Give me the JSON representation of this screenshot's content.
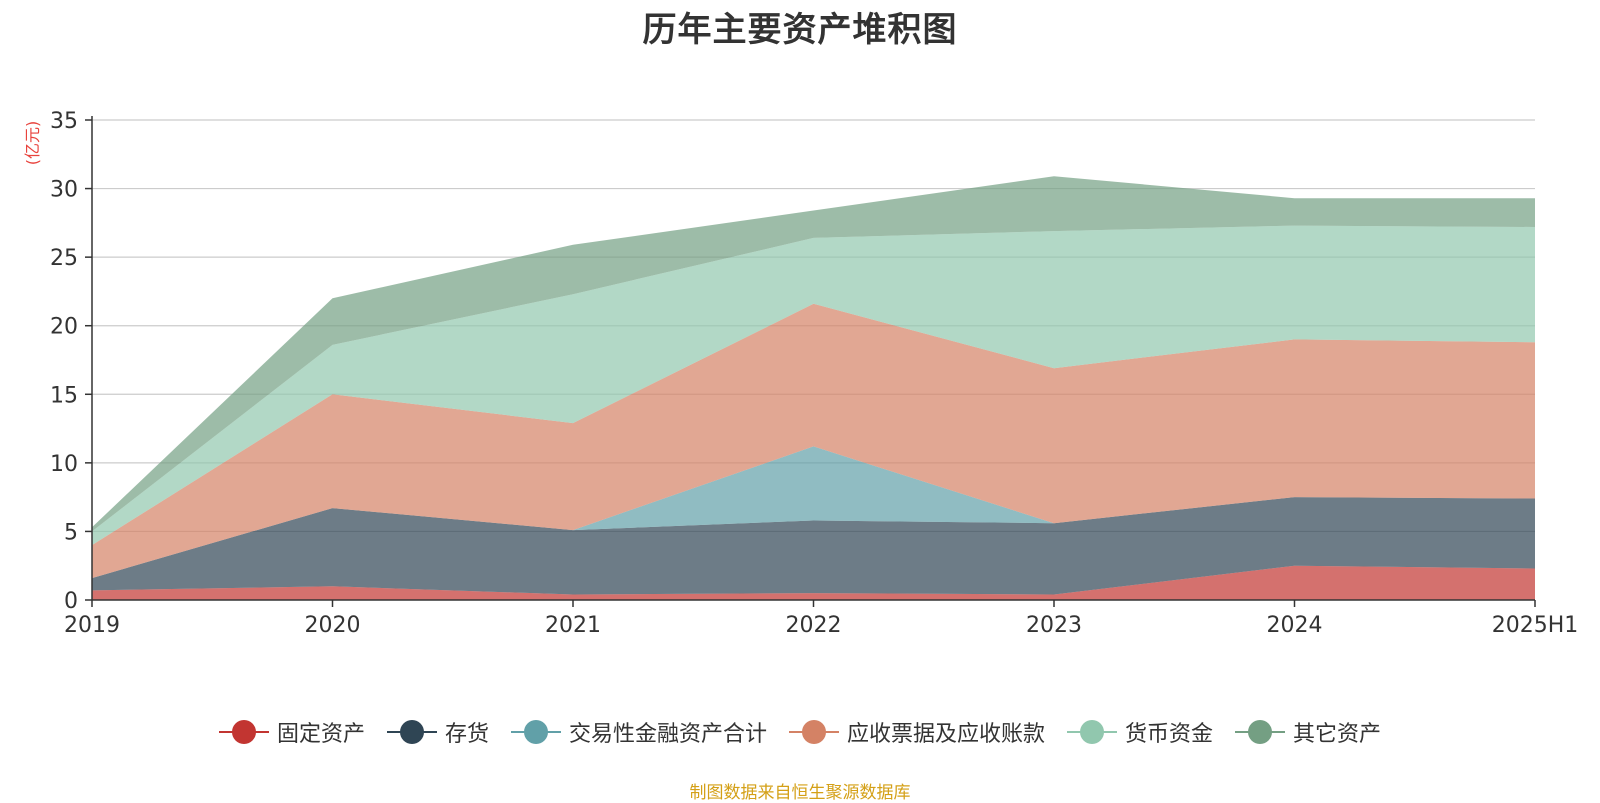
{
  "title": "历年主要资产堆积图",
  "source_note": "制图数据来自恒生聚源数据库",
  "chart_data": {
    "type": "area",
    "stacked": true,
    "title": "历年主要资产堆积图",
    "ylabel": "(亿元)",
    "xlabel": "",
    "ylim": [
      0,
      35
    ],
    "yticks": [
      0,
      5,
      10,
      15,
      20,
      25,
      30,
      35
    ],
    "categories": [
      "2019",
      "2020",
      "2021",
      "2022",
      "2023",
      "2024",
      "2025H1"
    ],
    "grid": true,
    "legend_position": "bottom",
    "series": [
      {
        "name": "固定资产",
        "color": "#c23531",
        "values": [
          0.7,
          1.0,
          0.4,
          0.5,
          0.4,
          2.5,
          2.3
        ]
      },
      {
        "name": "存货",
        "color": "#2f4554",
        "values": [
          0.9,
          5.7,
          4.7,
          5.3,
          5.2,
          5.0,
          5.1
        ]
      },
      {
        "name": "交易性金融资产合计",
        "color": "#61a0a8",
        "values": [
          0.0,
          0.0,
          0.0,
          5.4,
          0.0,
          0.0,
          0.0
        ]
      },
      {
        "name": "应收票据及应收账款",
        "color": "#d48265",
        "values": [
          2.4,
          8.3,
          7.8,
          10.4,
          11.3,
          11.5,
          11.4
        ]
      },
      {
        "name": "货币资金",
        "color": "#91c7ae",
        "values": [
          1.0,
          3.6,
          9.4,
          4.8,
          10.0,
          8.3,
          8.4
        ]
      },
      {
        "name": "其它资产",
        "color": "#749f83",
        "values": [
          0.3,
          3.4,
          3.6,
          2.0,
          4.0,
          2.0,
          2.1
        ]
      }
    ]
  }
}
